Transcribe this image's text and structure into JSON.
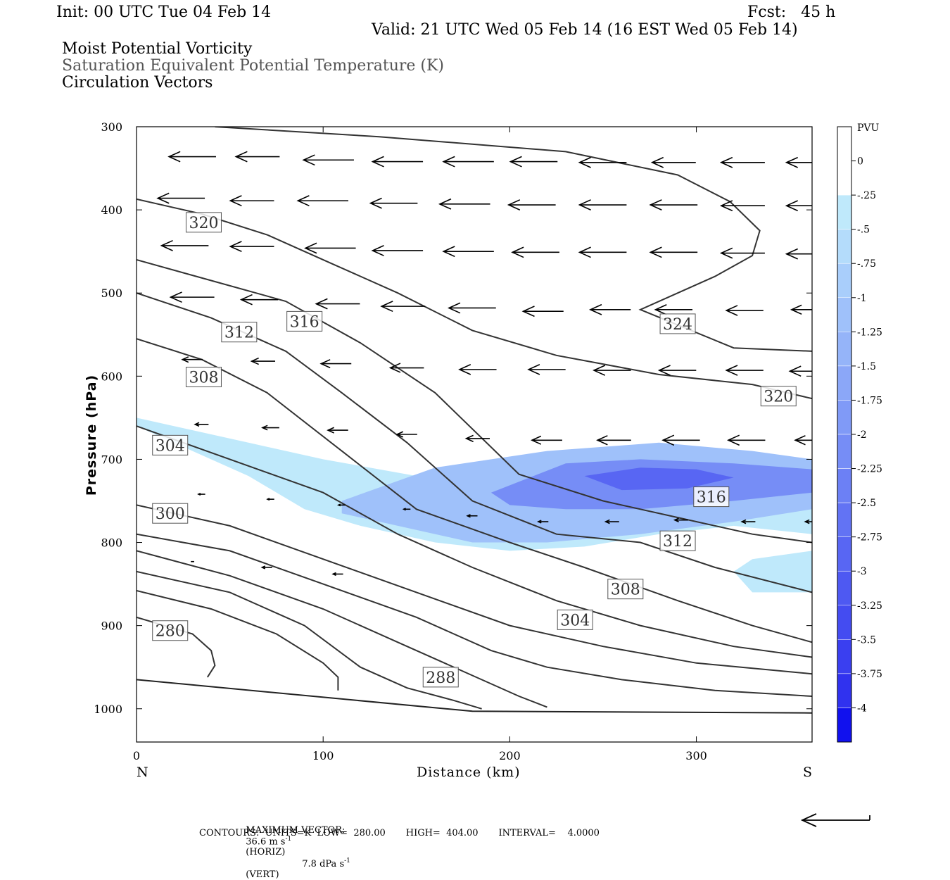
{
  "header": {
    "init": "Init: 00 UTC Tue 04 Feb 14",
    "fcst": "Fcst:   45 h",
    "valid": "Valid: 21 UTC Wed 05 Feb 14 (16 EST Wed 05 Feb 14)"
  },
  "titles": {
    "line1": "Moist Potential Vorticity",
    "line2": "Saturation Equivalent Potential Temperature (K)",
    "line3": "Circulation Vectors"
  },
  "footer": {
    "max_vector_label": "MAXIMUM VECTOR:",
    "horiz": "36.6 m s",
    "horiz_sup": "-1",
    "horiz_tag": "(HORIZ)",
    "vert": "7.8 dPa s",
    "vert_sup": "-1",
    "vert_tag": "(VERT)",
    "contours": "CONTOURS:  UNITS=K  LOW=  280.00       HIGH=  404.00       INTERVAL=    4.0000"
  },
  "chart_data": {
    "type": "cross-section",
    "xlabel": "Distance (km)",
    "ylabel": "Pressure (hPa)",
    "x_ticks": [
      0,
      100,
      200,
      300
    ],
    "y_ticks": [
      300,
      400,
      500,
      600,
      700,
      800,
      900,
      1000
    ],
    "xlim": [
      0,
      362
    ],
    "ylim": [
      300,
      1040
    ],
    "x_end_labels": {
      "left": "N",
      "right": "S"
    },
    "colorbar": {
      "units": "PVU",
      "levels": [
        "0",
        "-.25",
        "-.5",
        "-.75",
        "-1",
        "-1.25",
        "-1.5",
        "-1.75",
        "-2",
        "-2.25",
        "-2.5",
        "-2.75",
        "-3",
        "-3.25",
        "-3.5",
        "-3.75",
        "-4"
      ],
      "colors": [
        "#ffffff",
        "#bfe9fb",
        "#b4dcfb",
        "#a9cefb",
        "#9fc1fa",
        "#95b4f9",
        "#8ba7f8",
        "#809af7",
        "#768df6",
        "#6c80f5",
        "#6273f4",
        "#5866f3",
        "#4e59f2",
        "#444cf1",
        "#3a3ff0",
        "#3032ef",
        "#1111ee"
      ]
    },
    "contour_labels": [
      {
        "text": "320",
        "x": 36,
        "p": 415
      },
      {
        "text": "316",
        "x": 90,
        "p": 534
      },
      {
        "text": "312",
        "x": 55,
        "p": 547
      },
      {
        "text": "308",
        "x": 36,
        "p": 601
      },
      {
        "text": "304",
        "x": 18,
        "p": 683
      },
      {
        "text": "300",
        "x": 18,
        "p": 765
      },
      {
        "text": "280",
        "x": 18,
        "p": 906
      },
      {
        "text": "288",
        "x": 163,
        "p": 962
      },
      {
        "text": "304",
        "x": 235,
        "p": 893
      },
      {
        "text": "308",
        "x": 262,
        "p": 856
      },
      {
        "text": "312",
        "x": 290,
        "p": 798
      },
      {
        "text": "316",
        "x": 308,
        "p": 745
      },
      {
        "text": "324",
        "x": 290,
        "p": 537
      },
      {
        "text": "320",
        "x": 344,
        "p": 624
      }
    ],
    "isentropes": [
      {
        "k": 324,
        "pts": [
          [
            42,
            300
          ],
          [
            130,
            312
          ],
          [
            230,
            330
          ],
          [
            290,
            358
          ],
          [
            318,
            390
          ],
          [
            334,
            425
          ],
          [
            330,
            455
          ],
          [
            310,
            480
          ],
          [
            270,
            520
          ],
          [
            320,
            566
          ],
          [
            362,
            570
          ]
        ]
      },
      {
        "k": 320,
        "pts": [
          [
            0,
            387
          ],
          [
            35,
            405
          ],
          [
            70,
            430
          ],
          [
            105,
            465
          ],
          [
            140,
            500
          ],
          [
            180,
            545
          ],
          [
            225,
            575
          ],
          [
            280,
            598
          ],
          [
            330,
            610
          ],
          [
            362,
            627
          ]
        ]
      },
      {
        "k": 316,
        "pts": [
          [
            0,
            460
          ],
          [
            40,
            485
          ],
          [
            80,
            510
          ],
          [
            120,
            560
          ],
          [
            160,
            620
          ],
          [
            205,
            718
          ],
          [
            250,
            750
          ],
          [
            290,
            770
          ],
          [
            330,
            790
          ],
          [
            362,
            800
          ]
        ]
      },
      {
        "k": 312,
        "pts": [
          [
            0,
            500
          ],
          [
            40,
            530
          ],
          [
            80,
            570
          ],
          [
            110,
            620
          ],
          [
            145,
            680
          ],
          [
            180,
            750
          ],
          [
            225,
            790
          ],
          [
            270,
            800
          ],
          [
            310,
            830
          ],
          [
            362,
            860
          ]
        ]
      },
      {
        "k": 308,
        "pts": [
          [
            0,
            555
          ],
          [
            35,
            580
          ],
          [
            70,
            620
          ],
          [
            110,
            690
          ],
          [
            150,
            760
          ],
          [
            200,
            800
          ],
          [
            240,
            830
          ],
          [
            290,
            870
          ],
          [
            330,
            900
          ],
          [
            362,
            920
          ]
        ]
      },
      {
        "k": 304,
        "pts": [
          [
            0,
            660
          ],
          [
            50,
            700
          ],
          [
            100,
            740
          ],
          [
            140,
            790
          ],
          [
            180,
            830
          ],
          [
            225,
            870
          ],
          [
            270,
            900
          ],
          [
            320,
            925
          ],
          [
            362,
            938
          ]
        ]
      },
      {
        "k": 300,
        "pts": [
          [
            0,
            755
          ],
          [
            50,
            780
          ],
          [
            100,
            820
          ],
          [
            150,
            860
          ],
          [
            200,
            900
          ],
          [
            250,
            925
          ],
          [
            300,
            945
          ],
          [
            362,
            958
          ]
        ]
      },
      {
        "k": 296,
        "pts": [
          [
            0,
            790
          ],
          [
            50,
            810
          ],
          [
            100,
            850
          ],
          [
            150,
            890
          ],
          [
            190,
            930
          ],
          [
            220,
            950
          ],
          [
            260,
            965
          ],
          [
            310,
            978
          ],
          [
            362,
            985
          ]
        ]
      },
      {
        "k": 292,
        "pts": [
          [
            0,
            810
          ],
          [
            50,
            840
          ],
          [
            100,
            880
          ],
          [
            140,
            920
          ],
          [
            180,
            960
          ],
          [
            205,
            985
          ],
          [
            220,
            998
          ]
        ]
      },
      {
        "k": 288,
        "pts": [
          [
            0,
            835
          ],
          [
            50,
            860
          ],
          [
            90,
            900
          ],
          [
            120,
            950
          ],
          [
            145,
            975
          ],
          [
            170,
            990
          ],
          [
            185,
            1000
          ]
        ]
      },
      {
        "k": 284,
        "pts": [
          [
            0,
            858
          ],
          [
            40,
            880
          ],
          [
            75,
            910
          ],
          [
            100,
            945
          ],
          [
            108,
            962
          ],
          [
            108,
            978
          ]
        ]
      },
      {
        "k": 280,
        "pts": [
          [
            0,
            890
          ],
          [
            30,
            910
          ],
          [
            40,
            930
          ],
          [
            42,
            948
          ],
          [
            38,
            962
          ]
        ]
      }
    ],
    "ground_line": [
      [
        0,
        965
      ],
      [
        180,
        1003
      ],
      [
        362,
        1005
      ]
    ],
    "pv_region_outer": [
      [
        0,
        650
      ],
      [
        60,
        680
      ],
      [
        100,
        700
      ],
      [
        150,
        720
      ],
      [
        200,
        720
      ],
      [
        260,
        700
      ],
      [
        310,
        700
      ],
      [
        362,
        700
      ],
      [
        362,
        860
      ],
      [
        330,
        860
      ],
      [
        320,
        835
      ],
      [
        330,
        820
      ],
      [
        362,
        810
      ],
      [
        362,
        790
      ],
      [
        320,
        780
      ],
      [
        280,
        790
      ],
      [
        240,
        805
      ],
      [
        200,
        810
      ],
      [
        160,
        800
      ],
      [
        120,
        780
      ],
      [
        90,
        760
      ],
      [
        60,
        720
      ],
      [
        20,
        680
      ],
      [
        0,
        660
      ]
    ],
    "pv_region_inner": [
      [
        110,
        750
      ],
      [
        160,
        710
      ],
      [
        220,
        690
      ],
      [
        280,
        680
      ],
      [
        330,
        690
      ],
      [
        362,
        700
      ],
      [
        362,
        760
      ],
      [
        320,
        775
      ],
      [
        270,
        790
      ],
      [
        220,
        800
      ],
      [
        180,
        800
      ],
      [
        140,
        780
      ],
      [
        110,
        765
      ]
    ],
    "pv_region_core": [
      [
        190,
        740
      ],
      [
        230,
        705
      ],
      [
        270,
        700
      ],
      [
        320,
        705
      ],
      [
        362,
        712
      ],
      [
        362,
        740
      ],
      [
        320,
        750
      ],
      [
        270,
        760
      ],
      [
        230,
        760
      ],
      [
        200,
        755
      ]
    ],
    "pv_region_max": [
      [
        240,
        720
      ],
      [
        270,
        710
      ],
      [
        300,
        712
      ],
      [
        320,
        722
      ],
      [
        295,
        735
      ],
      [
        260,
        737
      ]
    ],
    "vectors": [
      {
        "x": 30,
        "p": 336,
        "len": 28
      },
      {
        "x": 65,
        "p": 336,
        "len": 26
      },
      {
        "x": 103,
        "p": 340,
        "len": 30
      },
      {
        "x": 140,
        "p": 342,
        "len": 30
      },
      {
        "x": 178,
        "p": 342,
        "len": 30
      },
      {
        "x": 213,
        "p": 342,
        "len": 28
      },
      {
        "x": 250,
        "p": 343,
        "len": 28
      },
      {
        "x": 288,
        "p": 343,
        "len": 26
      },
      {
        "x": 325,
        "p": 343,
        "len": 26
      },
      {
        "x": 360,
        "p": 343,
        "len": 26
      },
      {
        "x": 24,
        "p": 386,
        "len": 28
      },
      {
        "x": 62,
        "p": 389,
        "len": 26
      },
      {
        "x": 100,
        "p": 389,
        "len": 30
      },
      {
        "x": 138,
        "p": 392,
        "len": 28
      },
      {
        "x": 176,
        "p": 393,
        "len": 30
      },
      {
        "x": 212,
        "p": 394,
        "len": 28
      },
      {
        "x": 250,
        "p": 394,
        "len": 28
      },
      {
        "x": 288,
        "p": 394,
        "len": 28
      },
      {
        "x": 325,
        "p": 395,
        "len": 26
      },
      {
        "x": 360,
        "p": 395,
        "len": 26
      },
      {
        "x": 26,
        "p": 443,
        "len": 28
      },
      {
        "x": 62,
        "p": 444,
        "len": 26
      },
      {
        "x": 104,
        "p": 446,
        "len": 30
      },
      {
        "x": 140,
        "p": 449,
        "len": 30
      },
      {
        "x": 178,
        "p": 450,
        "len": 30
      },
      {
        "x": 214,
        "p": 451,
        "len": 28
      },
      {
        "x": 250,
        "p": 451,
        "len": 28
      },
      {
        "x": 288,
        "p": 451,
        "len": 28
      },
      {
        "x": 325,
        "p": 452,
        "len": 26
      },
      {
        "x": 360,
        "p": 453,
        "len": 26
      },
      {
        "x": 30,
        "p": 505,
        "len": 26
      },
      {
        "x": 66,
        "p": 508,
        "len": 22
      },
      {
        "x": 108,
        "p": 513,
        "len": 26
      },
      {
        "x": 143,
        "p": 516,
        "len": 26
      },
      {
        "x": 180,
        "p": 518,
        "len": 28
      },
      {
        "x": 218,
        "p": 522,
        "len": 24
      },
      {
        "x": 254,
        "p": 520,
        "len": 24
      },
      {
        "x": 288,
        "p": 520,
        "len": 22
      },
      {
        "x": 326,
        "p": 521,
        "len": 22
      },
      {
        "x": 360,
        "p": 520,
        "len": 20
      },
      {
        "x": 30,
        "p": 580,
        "len": 12
      },
      {
        "x": 68,
        "p": 582,
        "len": 14
      },
      {
        "x": 107,
        "p": 585,
        "len": 18
      },
      {
        "x": 145,
        "p": 590,
        "len": 20
      },
      {
        "x": 183,
        "p": 592,
        "len": 22
      },
      {
        "x": 220,
        "p": 592,
        "len": 22
      },
      {
        "x": 255,
        "p": 593,
        "len": 22
      },
      {
        "x": 290,
        "p": 593,
        "len": 22
      },
      {
        "x": 326,
        "p": 593,
        "len": 22
      },
      {
        "x": 360,
        "p": 594,
        "len": 22
      },
      {
        "x": 35,
        "p": 658,
        "len": 8
      },
      {
        "x": 72,
        "p": 662,
        "len": 10
      },
      {
        "x": 108,
        "p": 665,
        "len": 12
      },
      {
        "x": 145,
        "p": 670,
        "len": 12
      },
      {
        "x": 183,
        "p": 675,
        "len": 14
      },
      {
        "x": 220,
        "p": 677,
        "len": 18
      },
      {
        "x": 256,
        "p": 677,
        "len": 20
      },
      {
        "x": 292,
        "p": 677,
        "len": 22
      },
      {
        "x": 327,
        "p": 677,
        "len": 22
      },
      {
        "x": 362,
        "p": 677,
        "len": 20
      },
      {
        "x": 35,
        "p": 742,
        "len": 4
      },
      {
        "x": 72,
        "p": 748,
        "len": 4
      },
      {
        "x": 110,
        "p": 755,
        "len": 4
      },
      {
        "x": 145,
        "p": 760,
        "len": 4
      },
      {
        "x": 180,
        "p": 768,
        "len": 6
      },
      {
        "x": 218,
        "p": 775,
        "len": 6
      },
      {
        "x": 255,
        "p": 775,
        "len": 8
      },
      {
        "x": 292,
        "p": 773,
        "len": 8
      },
      {
        "x": 328,
        "p": 775,
        "len": 8
      },
      {
        "x": 362,
        "p": 775,
        "len": 8
      },
      {
        "x": 30,
        "p": 823,
        "len": 2
      },
      {
        "x": 70,
        "p": 830,
        "len": 6
      },
      {
        "x": 108,
        "p": 838,
        "len": 6
      }
    ]
  }
}
